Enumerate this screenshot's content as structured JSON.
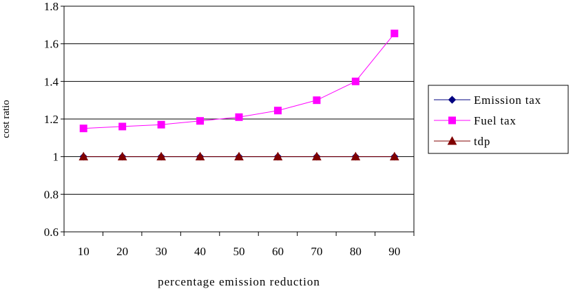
{
  "chart_data": {
    "type": "line",
    "title": "",
    "xlabel": "percentage emission reduction",
    "ylabel": "cost ratio",
    "categories": [
      "10",
      "20",
      "30",
      "40",
      "50",
      "60",
      "70",
      "80",
      "90"
    ],
    "ylim": [
      0.6,
      1.8
    ],
    "yticks": [
      "0.6",
      "0.8",
      "1",
      "1.2",
      "1.4",
      "1.6",
      "1.8"
    ],
    "grid": true,
    "legend_position": "right",
    "series": [
      {
        "name": "Emission tax",
        "marker": "diamond",
        "color": "#000080",
        "values": [
          1,
          1,
          1,
          1,
          1,
          1,
          1,
          1,
          1
        ]
      },
      {
        "name": "Fuel tax",
        "marker": "square",
        "color": "#FF00FF",
        "values": [
          1.15,
          1.16,
          1.17,
          1.19,
          1.21,
          1.245,
          1.3,
          1.4,
          1.655
        ]
      },
      {
        "name": "tdp",
        "marker": "triangle",
        "color": "#800000",
        "values": [
          1,
          1,
          1,
          1,
          1,
          1,
          1,
          1,
          1
        ]
      }
    ]
  }
}
